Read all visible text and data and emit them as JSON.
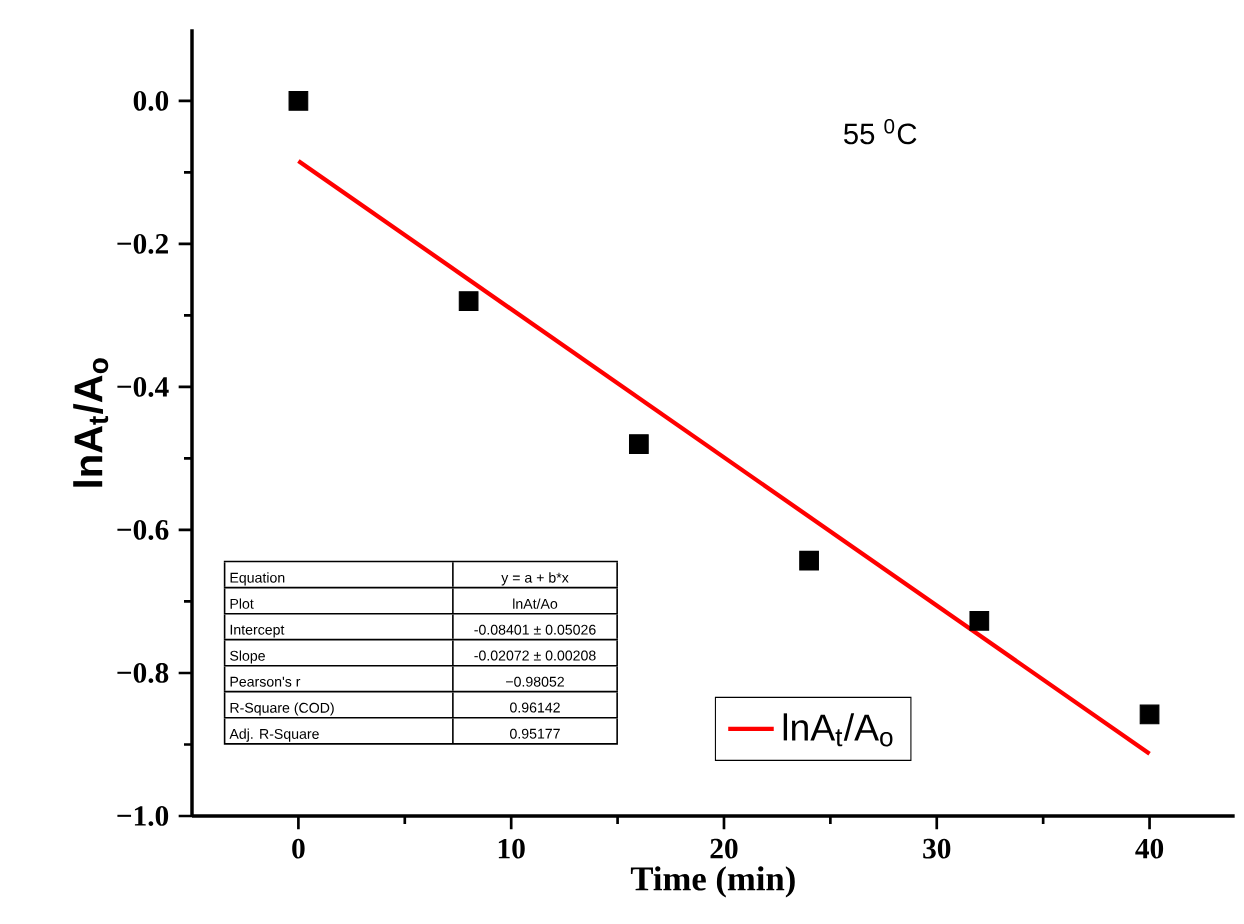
{
  "chart_data": {
    "type": "scatter",
    "xlabel": "Time (min)",
    "ylabel": "lnA$_{t}$/A$_{o}$",
    "xlim": [
      -5,
      44
    ],
    "ylim": [
      -1.0,
      0.1
    ],
    "xticks": [
      0,
      10,
      20,
      30,
      40
    ],
    "yticks": [
      {
        "value": -1.0,
        "label": "−1.0"
      },
      {
        "value": -0.8,
        "label": "−0.8"
      },
      {
        "value": -0.6,
        "label": "−0.6"
      },
      {
        "value": -0.4,
        "label": "−0.4"
      },
      {
        "value": -0.2,
        "label": "−0.2"
      },
      {
        "value": 0.0,
        "label": "0.0"
      }
    ],
    "series": [
      {
        "color": "#000000",
        "marker": "square",
        "x": [
          0,
          8,
          16,
          24,
          32,
          40
        ],
        "values": [
          0.0,
          -0.28,
          -0.48,
          -0.643,
          -0.727,
          -0.858
        ]
      },
      {
        "type": "line",
        "name": "lnA$_{t}$/A$_{o}$",
        "color": "#ff0000",
        "marker": "none",
        "x": [
          0,
          40
        ],
        "values": [
          -0.084,
          -0.913
        ]
      }
    ],
    "legend": "bottom right",
    "annotations": [
      "55 $^{0}$C",
      "Equation",
      "y = a + b*x",
      "Plot",
      "lnAt/Ao",
      "Intercept",
      "-0.08401 ± 0.05026",
      "Slope",
      "-0.02072 ± 0.00208",
      "Pearson's r",
      "−0.98052",
      "R-Square (COD)",
      "0.96142",
      "Adj. R-Square",
      "0.95177"
    ]
  }
}
